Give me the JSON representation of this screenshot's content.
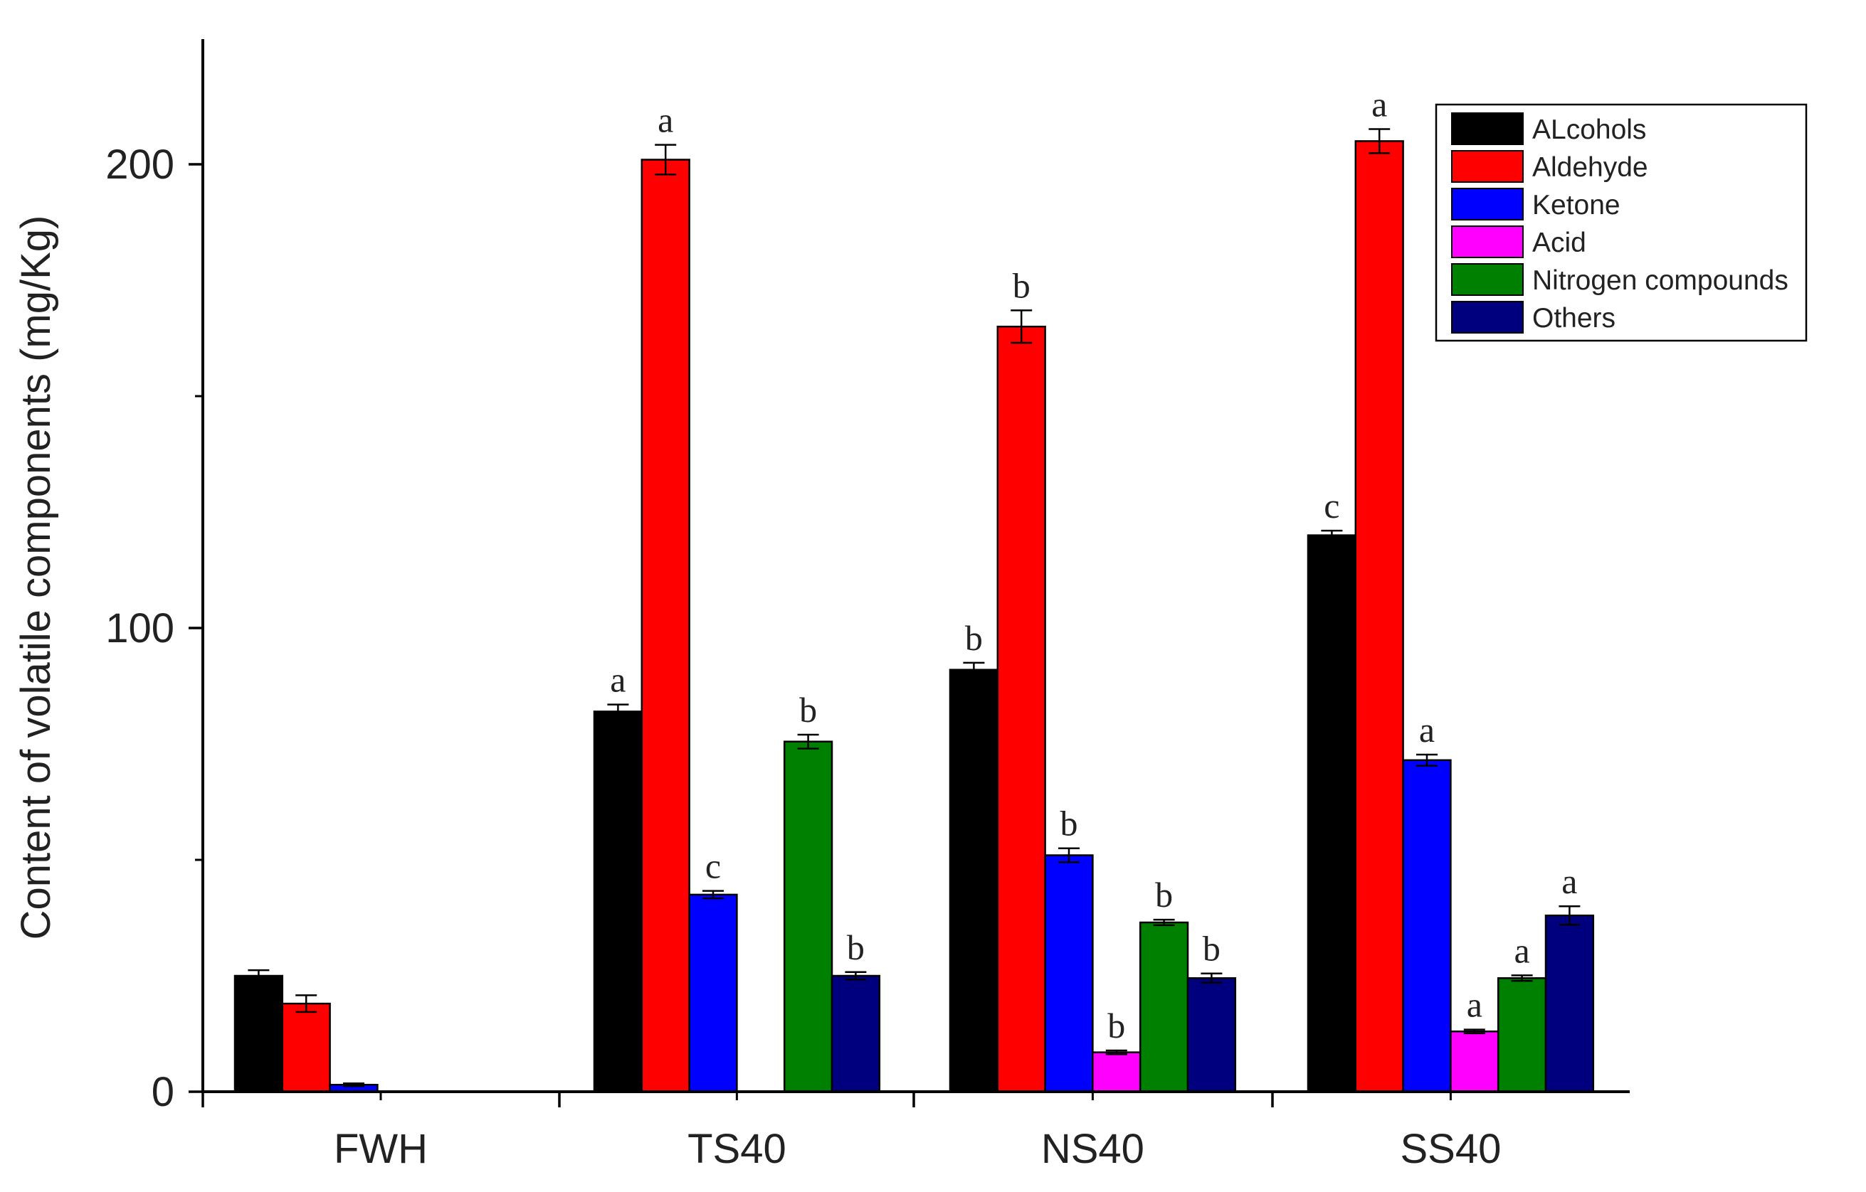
{
  "chart_data": {
    "type": "bar",
    "title": "",
    "xlabel": "",
    "ylabel": "Content of volatile components (mg/Kg)",
    "ylim": [
      0,
      225
    ],
    "yticks": [
      0,
      100,
      200
    ],
    "grid": false,
    "legend_position": "top-right",
    "categories": [
      "FWH",
      "TS40",
      "NS40",
      "SS40"
    ],
    "series": [
      {
        "name": "ALcohols",
        "color": "#000000",
        "values": [
          25,
          82,
          91,
          120
        ],
        "errors": [
          1.2,
          1.5,
          1.5,
          1.0
        ],
        "labels": [
          "",
          "a",
          "b",
          "c"
        ]
      },
      {
        "name": "Aldehyde",
        "color": "#ff0000",
        "values": [
          19,
          201,
          165,
          205
        ],
        "errors": [
          1.8,
          3.2,
          3.5,
          2.6
        ],
        "labels": [
          "",
          "a",
          "b",
          "a"
        ]
      },
      {
        "name": "Ketone",
        "color": "#0000ff",
        "values": [
          1.5,
          42.5,
          51,
          71.5
        ],
        "errors": [
          0.3,
          0.8,
          1.5,
          1.2
        ],
        "labels": [
          "",
          "c",
          "b",
          "a"
        ]
      },
      {
        "name": "Acid",
        "color": "#ff00ff",
        "values": [
          0,
          0,
          8.5,
          13
        ],
        "errors": [
          0,
          0,
          0.4,
          0.4
        ],
        "labels": [
          "",
          "",
          "b",
          "a"
        ]
      },
      {
        "name": "Nitrogen compounds",
        "color": "#008000",
        "values": [
          0,
          75.5,
          36.5,
          24.5
        ],
        "errors": [
          0,
          1.5,
          0.6,
          0.6
        ],
        "labels": [
          "",
          "b",
          "b",
          "a"
        ]
      },
      {
        "name": "Others",
        "color": "#00007f",
        "values": [
          0,
          25,
          24.5,
          38
        ],
        "errors": [
          0,
          0.8,
          1.0,
          2.0
        ],
        "labels": [
          "",
          "b",
          "b",
          "a"
        ]
      }
    ]
  }
}
